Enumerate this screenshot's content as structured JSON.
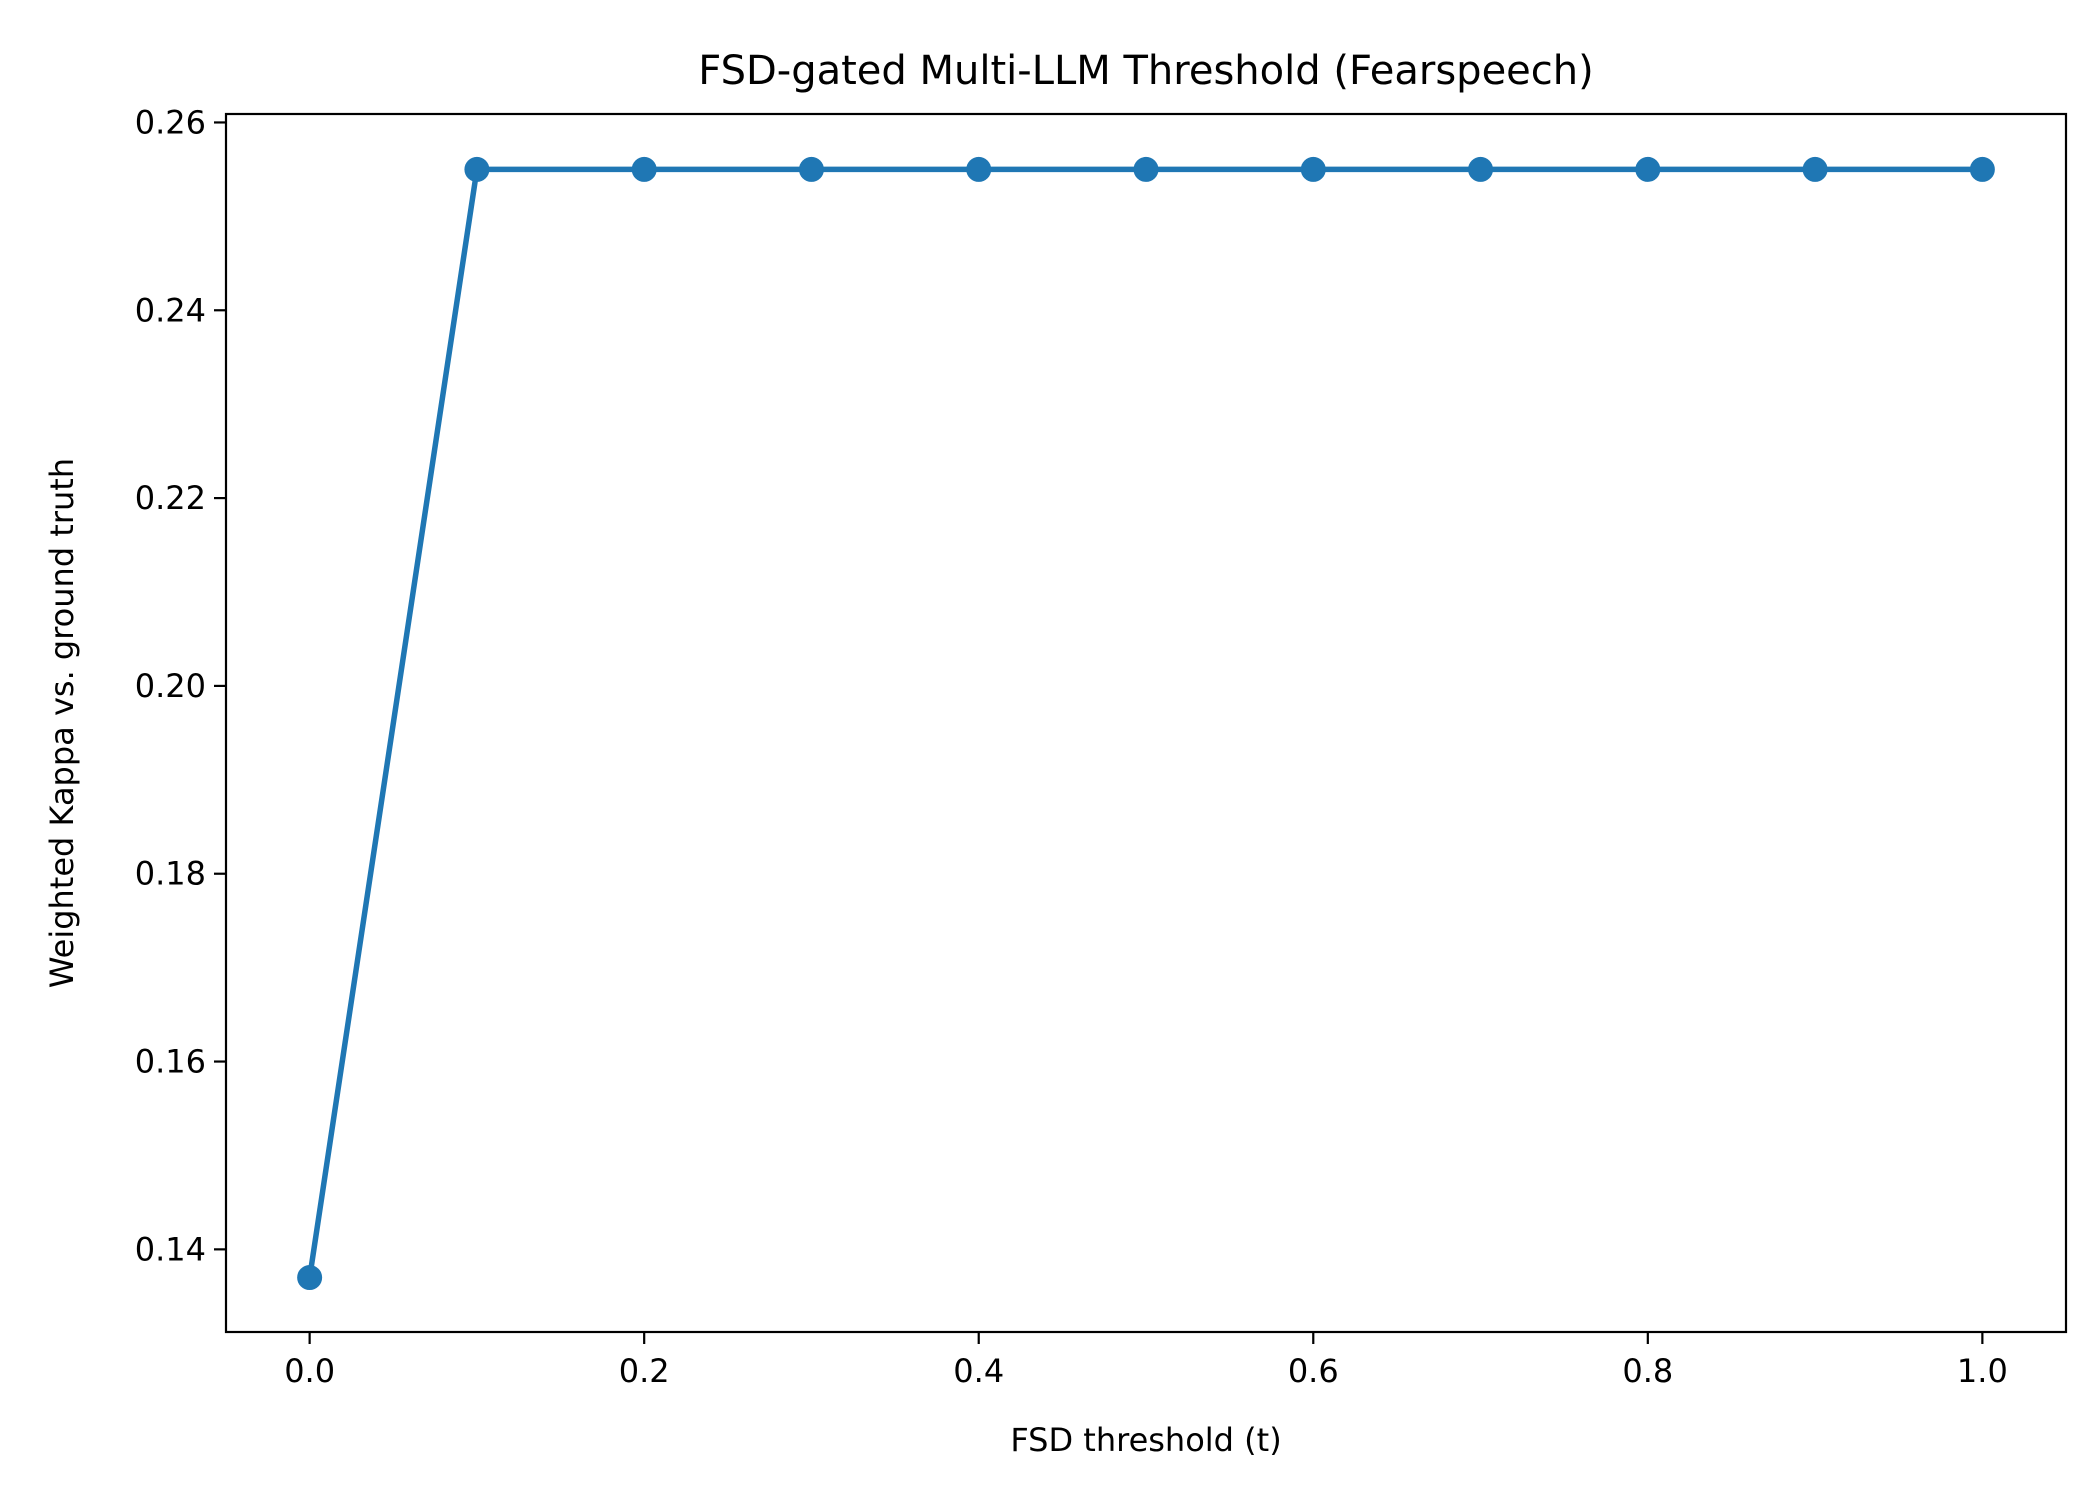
{
  "chart_data": {
    "type": "line",
    "title": "FSD-gated Multi-LLM Threshold (Fearspeech)",
    "xlabel": "FSD threshold (t)",
    "ylabel": "Weighted Kappa vs. ground truth",
    "xlim": [
      -0.05,
      1.05
    ],
    "ylim": [
      0.1312,
      0.2609
    ],
    "xticks": [
      "0.0",
      "0.2",
      "0.4",
      "0.6",
      "0.8",
      "1.0"
    ],
    "yticks": [
      "0.14",
      "0.16",
      "0.18",
      "0.20",
      "0.22",
      "0.24",
      "0.26"
    ],
    "grid": false,
    "legend": "none",
    "series": [
      {
        "color": "#1f77b4",
        "marker": "circle",
        "x": [
          0.0,
          0.1,
          0.2,
          0.3,
          0.4,
          0.5,
          0.6,
          0.7,
          0.8,
          0.9,
          1.0
        ],
        "y": [
          0.137,
          0.255,
          0.255,
          0.255,
          0.255,
          0.255,
          0.255,
          0.255,
          0.255,
          0.255,
          0.255
        ]
      }
    ]
  }
}
